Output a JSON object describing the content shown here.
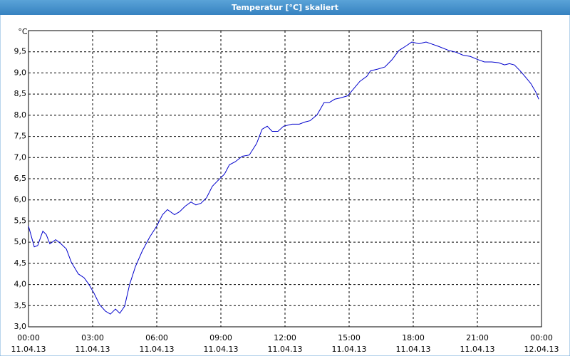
{
  "window_title": "Temperatur [°C] skaliert",
  "chart_data": {
    "type": "line",
    "y_label": "°C",
    "x": [
      0,
      0.27,
      0.43,
      0.67,
      0.83,
      1.0,
      1.27,
      1.5,
      1.77,
      2.0,
      2.33,
      2.6,
      2.83,
      3.07,
      3.33,
      3.6,
      3.83,
      4.07,
      4.27,
      4.5,
      4.73,
      5.0,
      5.33,
      5.67,
      6.0,
      6.27,
      6.5,
      6.83,
      7.07,
      7.33,
      7.6,
      7.83,
      8.07,
      8.33,
      8.6,
      8.83,
      9.17,
      9.4,
      9.67,
      10.0,
      10.33,
      10.67,
      10.93,
      11.17,
      11.4,
      11.67,
      11.93,
      12.33,
      12.67,
      12.93,
      13.17,
      13.5,
      13.83,
      14.07,
      14.33,
      14.6,
      14.93,
      15.17,
      15.5,
      15.83,
      16.0,
      16.33,
      16.67,
      17.0,
      17.33,
      17.67,
      17.93,
      18.27,
      18.6,
      18.83,
      19.17,
      19.67,
      20.0,
      20.33,
      20.67,
      21.0,
      21.33,
      21.67,
      22.0,
      22.27,
      22.5,
      22.73,
      23.0,
      23.27,
      23.5,
      23.73,
      23.87
    ],
    "series": [
      {
        "name": "Temperatur",
        "color": "#0000cc",
        "values": [
          5.38,
          4.89,
          4.92,
          5.26,
          5.18,
          4.96,
          5.06,
          4.97,
          4.84,
          4.53,
          4.25,
          4.16,
          4.0,
          3.79,
          3.52,
          3.37,
          3.3,
          3.42,
          3.32,
          3.49,
          4.0,
          4.42,
          4.8,
          5.12,
          5.38,
          5.65,
          5.77,
          5.65,
          5.72,
          5.85,
          5.95,
          5.88,
          5.92,
          6.05,
          6.32,
          6.44,
          6.61,
          6.83,
          6.9,
          7.03,
          7.06,
          7.33,
          7.67,
          7.74,
          7.62,
          7.62,
          7.74,
          7.79,
          7.79,
          7.84,
          7.87,
          8.01,
          8.3,
          8.3,
          8.38,
          8.41,
          8.46,
          8.6,
          8.8,
          8.92,
          9.05,
          9.09,
          9.14,
          9.31,
          9.53,
          9.64,
          9.73,
          9.69,
          9.73,
          9.69,
          9.63,
          9.53,
          9.49,
          9.42,
          9.39,
          9.32,
          9.26,
          9.26,
          9.24,
          9.19,
          9.22,
          9.19,
          9.05,
          8.89,
          8.75,
          8.55,
          8.38
        ]
      }
    ],
    "xlim": [
      0,
      24
    ],
    "xticks": [
      {
        "value": 0,
        "label": "00:00",
        "date": "11.04.13"
      },
      {
        "value": 3,
        "label": "03:00",
        "date": "11.04.13"
      },
      {
        "value": 6,
        "label": "06:00",
        "date": "11.04.13"
      },
      {
        "value": 9,
        "label": "09:00",
        "date": "11.04.13"
      },
      {
        "value": 12,
        "label": "12:00",
        "date": "11.04.13"
      },
      {
        "value": 15,
        "label": "15:00",
        "date": "11.04.13"
      },
      {
        "value": 18,
        "label": "18:00",
        "date": "11.04.13"
      },
      {
        "value": 21,
        "label": "21:00",
        "date": "11.04.13"
      },
      {
        "value": 24,
        "label": "00:00",
        "date": "12.04.13"
      }
    ],
    "ylim": [
      3,
      10
    ],
    "yticks": [
      {
        "value": 3.0,
        "label": "3,0"
      },
      {
        "value": 3.5,
        "label": "3,5"
      },
      {
        "value": 4.0,
        "label": "4,0"
      },
      {
        "value": 4.5,
        "label": "4,5"
      },
      {
        "value": 5.0,
        "label": "5,0"
      },
      {
        "value": 5.5,
        "label": "5,5"
      },
      {
        "value": 6.0,
        "label": "6,0"
      },
      {
        "value": 6.5,
        "label": "6,5"
      },
      {
        "value": 7.0,
        "label": "7,0"
      },
      {
        "value": 7.5,
        "label": "7,5"
      },
      {
        "value": 8.0,
        "label": "8,0"
      },
      {
        "value": 8.5,
        "label": "8,5"
      },
      {
        "value": 9.0,
        "label": "9,0"
      },
      {
        "value": 9.5,
        "label": "9,5"
      }
    ],
    "grid": true
  }
}
